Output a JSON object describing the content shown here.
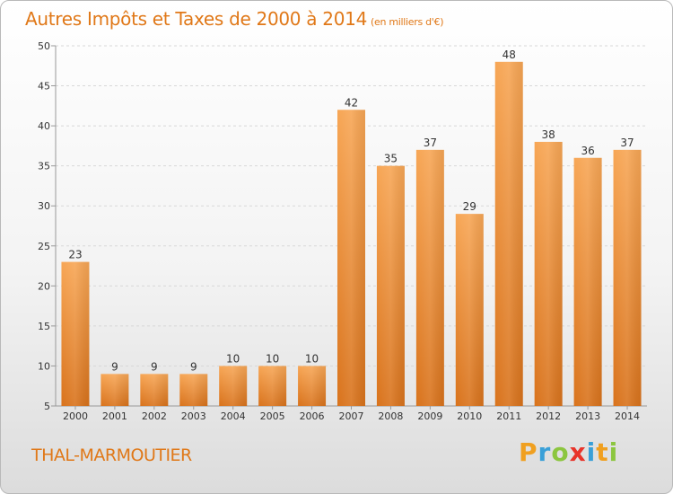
{
  "header": {
    "title": "Autres Impôts et Taxes de 2000 à 2014",
    "unit": "(en milliers d'€)"
  },
  "footer": {
    "place": "THAL-MARMOUTIER",
    "logo_letters": [
      "P",
      "r",
      "o",
      "x",
      "i",
      "t",
      "i"
    ],
    "logo_colors": [
      "#f0a020",
      "#3aa0d8",
      "#8cc63f",
      "#e8342a",
      "#3aa0d8",
      "#f0a020",
      "#8cc63f"
    ]
  },
  "chart_data": {
    "type": "bar",
    "categories": [
      "2000",
      "2001",
      "2002",
      "2003",
      "2004",
      "2005",
      "2006",
      "2007",
      "2008",
      "2009",
      "2010",
      "2011",
      "2012",
      "2013",
      "2014"
    ],
    "values": [
      23,
      9,
      9,
      9,
      10,
      10,
      10,
      42,
      35,
      37,
      29,
      48,
      38,
      36,
      37
    ],
    "title": "Autres Impôts et Taxes de 2000 à 2014",
    "xlabel": "",
    "ylabel": "",
    "ylim": [
      5,
      50
    ],
    "yticks": [
      5,
      10,
      15,
      20,
      25,
      30,
      35,
      40,
      45,
      50
    ],
    "grid": true,
    "bar_color": "#e8842a"
  }
}
